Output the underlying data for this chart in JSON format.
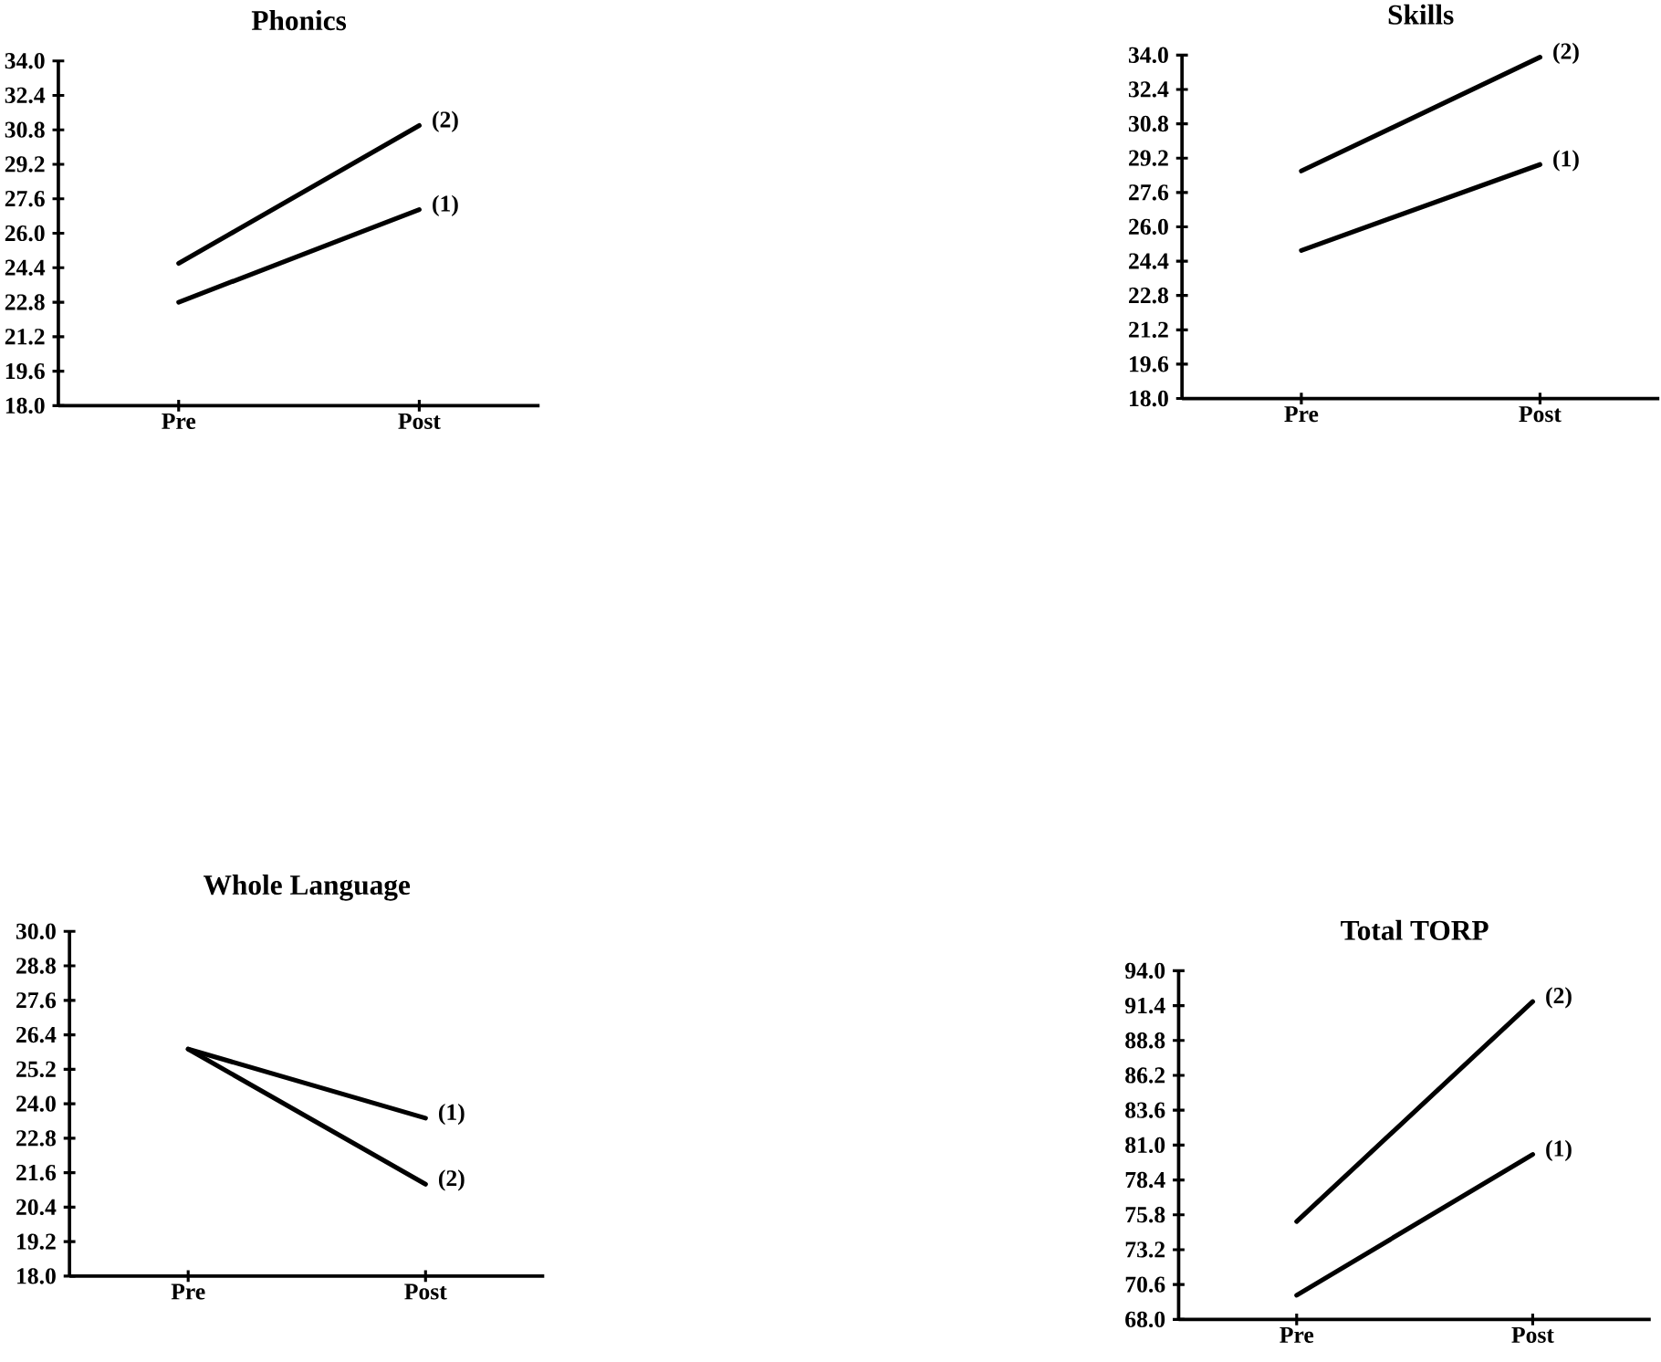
{
  "chart_data": [
    {
      "type": "line",
      "title": "Phonics",
      "categories": [
        "Pre",
        "Post"
      ],
      "series": [
        {
          "name": "(1)",
          "color": "#000000",
          "values": [
            22.8,
            27.1
          ]
        },
        {
          "name": "(2)",
          "color": "#000000",
          "values": [
            24.6,
            31.0
          ]
        }
      ],
      "ylim": [
        18.0,
        34.0
      ],
      "yticks": [
        {
          "value": 18.0,
          "label": "18.0"
        },
        {
          "value": 19.6,
          "label": "19.6"
        },
        {
          "value": 21.2,
          "label": "21.2"
        },
        {
          "value": 22.8,
          "label": "22.8"
        },
        {
          "value": 24.4,
          "label": "24.4"
        },
        {
          "value": 26.0,
          "label": "26.0"
        },
        {
          "value": 27.6,
          "label": "27.6"
        },
        {
          "value": 29.2,
          "label": "29.2"
        },
        {
          "value": 30.8,
          "label": "30.8"
        },
        {
          "value": 32.4,
          "label": "32.4"
        },
        {
          "value": 34.0,
          "label": "34.0"
        }
      ]
    },
    {
      "type": "line",
      "title": "Skills",
      "categories": [
        "Pre",
        "Post"
      ],
      "series": [
        {
          "name": "(1)",
          "color": "#000000",
          "values": [
            24.9,
            28.9
          ]
        },
        {
          "name": "(2)",
          "color": "#000000",
          "values": [
            28.6,
            33.9
          ]
        }
      ],
      "ylim": [
        18.0,
        34.0
      ],
      "yticks": [
        {
          "value": 18.0,
          "label": "18.0"
        },
        {
          "value": 19.6,
          "label": "19.6"
        },
        {
          "value": 21.2,
          "label": "21.2"
        },
        {
          "value": 22.8,
          "label": "22.8"
        },
        {
          "value": 24.4,
          "label": "24.4"
        },
        {
          "value": 26.0,
          "label": "26.0"
        },
        {
          "value": 27.6,
          "label": "27.6"
        },
        {
          "value": 29.2,
          "label": "29.2"
        },
        {
          "value": 30.8,
          "label": "30.8"
        },
        {
          "value": 32.4,
          "label": "32.4"
        },
        {
          "value": 34.0,
          "label": "34.0"
        }
      ]
    },
    {
      "type": "line",
      "title": "Whole Language",
      "categories": [
        "Pre",
        "Post"
      ],
      "series": [
        {
          "name": "(1)",
          "color": "#000000",
          "values": [
            25.9,
            23.5
          ]
        },
        {
          "name": "(2)",
          "color": "#000000",
          "values": [
            25.9,
            21.2
          ]
        }
      ],
      "ylim": [
        18.0,
        30.0
      ],
      "yticks": [
        {
          "value": 18.0,
          "label": "18.0"
        },
        {
          "value": 19.2,
          "label": "19.2"
        },
        {
          "value": 20.4,
          "label": "20.4"
        },
        {
          "value": 21.6,
          "label": "21.6"
        },
        {
          "value": 22.8,
          "label": "22.8"
        },
        {
          "value": 24.0,
          "label": "24.0"
        },
        {
          "value": 25.2,
          "label": "25.2"
        },
        {
          "value": 26.4,
          "label": "26.4"
        },
        {
          "value": 27.6,
          "label": "27.6"
        },
        {
          "value": 28.8,
          "label": "28.8"
        },
        {
          "value": 30.0,
          "label": "30.0"
        }
      ]
    },
    {
      "type": "line",
      "title": "Total TORP",
      "categories": [
        "Pre",
        "Post"
      ],
      "series": [
        {
          "name": "(1)",
          "color": "#000000",
          "values": [
            69.8,
            80.3
          ]
        },
        {
          "name": "(2)",
          "color": "#000000",
          "values": [
            75.3,
            91.7
          ]
        }
      ],
      "ylim": [
        68.0,
        94.0
      ],
      "yticks": [
        {
          "value": 68.0,
          "label": "68.0"
        },
        {
          "value": 70.6,
          "label": "70.6"
        },
        {
          "value": 73.2,
          "label": "73.2"
        },
        {
          "value": 75.8,
          "label": "75.8"
        },
        {
          "value": 78.4,
          "label": "78.4"
        },
        {
          "value": 81.0,
          "label": "81.0"
        },
        {
          "value": 83.6,
          "label": "83.6"
        },
        {
          "value": 86.2,
          "label": "86.2"
        },
        {
          "value": 88.8,
          "label": "88.8"
        },
        {
          "value": 91.4,
          "label": "91.4"
        },
        {
          "value": 94.0,
          "label": "94.0"
        }
      ]
    }
  ]
}
